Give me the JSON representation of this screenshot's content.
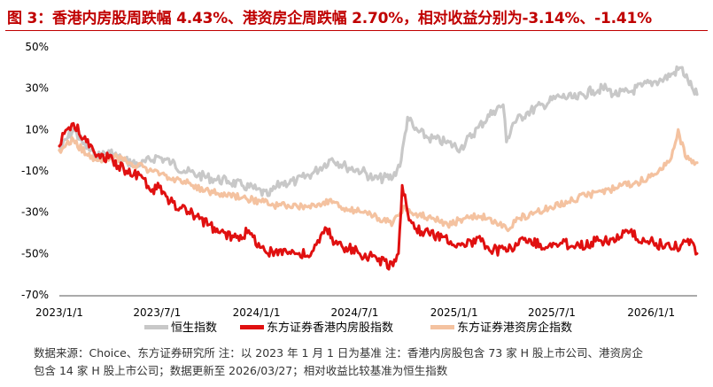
{
  "title": "图 3：香港内房股周跌幅 4.43%、港资房企周跌幅 2.70%，相对收益分别为-3.14%、-1.41%",
  "notes": [
    "数据来源：Choice、东方证券研究所 注：以 2023 年 1 月 1 日为基准      注：香港内房股包含 73 家 H 股上市公司、港资房企",
    "包含 14 家 H 股上市公司；数据更新至 2026/03/27；相对收益比较基准为恒生指数"
  ],
  "chart_data": {
    "type": "line",
    "title": "",
    "xlabel": "",
    "ylabel": "",
    "ylim": [
      -70,
      50
    ],
    "yticks": [
      50,
      30,
      10,
      -10,
      -30,
      -50,
      -70
    ],
    "ytick_labels": [
      "50%",
      "30%",
      "10%",
      "-10%",
      "-30%",
      "-50%",
      "-70%"
    ],
    "xlim": [
      "2023-01-01",
      "2026-03-27"
    ],
    "xticks": [
      "2023-01-01",
      "2023-07-01",
      "2024-01-01",
      "2024-07-01",
      "2025-01-01",
      "2025-07-01",
      "2026-01-01"
    ],
    "xtick_labels": [
      "2023/1/1",
      "2023/7/1",
      "2024/1/1",
      "2024/7/1",
      "2025/1/1",
      "2025/7/1",
      "2026/1/1"
    ],
    "grid": false,
    "legend_position": "bottom",
    "series": [
      {
        "name": "恒生指数",
        "color": "#c8c8c8",
        "x": [
          "2023-01-01",
          "2023-01-27",
          "2023-02-15",
          "2023-03-10",
          "2023-04-05",
          "2023-05-01",
          "2023-06-01",
          "2023-07-01",
          "2023-07-28",
          "2023-08-20",
          "2023-09-15",
          "2023-10-15",
          "2023-11-10",
          "2023-12-05",
          "2024-01-01",
          "2024-01-22",
          "2024-02-15",
          "2024-03-15",
          "2024-04-15",
          "2024-05-20",
          "2024-06-15",
          "2024-07-15",
          "2024-08-05",
          "2024-09-10",
          "2024-09-25",
          "2024-10-07",
          "2024-10-20",
          "2024-11-15",
          "2024-12-15",
          "2025-01-13",
          "2025-02-15",
          "2025-03-15",
          "2025-04-02",
          "2025-04-08",
          "2025-04-20",
          "2025-05-15",
          "2025-06-15",
          "2025-07-15",
          "2025-08-15",
          "2025-09-15",
          "2025-10-10",
          "2025-10-25",
          "2025-11-20",
          "2025-12-15",
          "2026-01-05",
          "2026-01-20",
          "2026-02-10",
          "2026-02-25",
          "2026-03-10",
          "2026-03-20",
          "2026-03-27"
        ],
        "values": [
          0,
          10,
          3,
          -3,
          -1,
          -5,
          -7,
          -3,
          -6,
          -10,
          -12,
          -14,
          -15,
          -17,
          -19,
          -22,
          -16,
          -15,
          -11,
          -4,
          -8,
          -10,
          -14,
          -13,
          -5,
          16,
          10,
          6,
          4,
          1,
          11,
          19,
          22,
          4,
          13,
          18,
          22,
          26,
          25,
          29,
          30,
          27,
          28,
          31,
          33,
          34,
          37,
          40,
          34,
          29,
          27
        ]
      },
      {
        "name": "东方证券香港内房股指数",
        "color": "#e01010",
        "x": [
          "2023-01-01",
          "2023-01-10",
          "2023-01-27",
          "2023-02-20",
          "2023-03-15",
          "2023-04-10",
          "2023-05-05",
          "2023-06-01",
          "2023-06-20",
          "2023-07-05",
          "2023-07-25",
          "2023-08-15",
          "2023-09-10",
          "2023-10-05",
          "2023-10-25",
          "2023-11-20",
          "2023-12-15",
          "2024-01-05",
          "2024-01-22",
          "2024-02-15",
          "2024-03-15",
          "2024-04-10",
          "2024-05-10",
          "2024-05-25",
          "2024-06-15",
          "2024-07-10",
          "2024-08-10",
          "2024-09-10",
          "2024-09-20",
          "2024-09-27",
          "2024-10-07",
          "2024-10-20",
          "2024-11-15",
          "2024-12-10",
          "2025-01-13",
          "2025-02-20",
          "2025-03-15",
          "2025-04-08",
          "2025-04-25",
          "2025-05-20",
          "2025-06-20",
          "2025-07-20",
          "2025-08-20",
          "2025-09-20",
          "2025-10-20",
          "2025-11-20",
          "2025-12-20",
          "2026-01-10",
          "2026-02-05",
          "2026-02-25",
          "2026-03-10",
          "2026-03-20",
          "2026-03-27"
        ],
        "values": [
          2,
          8,
          13,
          4,
          -2,
          -5,
          -10,
          -12,
          -20,
          -18,
          -25,
          -28,
          -32,
          -36,
          -40,
          -42,
          -40,
          -45,
          -50,
          -48,
          -50,
          -51,
          -38,
          -45,
          -47,
          -50,
          -52,
          -56,
          -50,
          -17,
          -30,
          -38,
          -40,
          -42,
          -46,
          -44,
          -48,
          -49,
          -45,
          -43,
          -47,
          -45,
          -46,
          -44,
          -43,
          -40,
          -44,
          -45,
          -47,
          -46,
          -43,
          -45,
          -50
        ]
      },
      {
        "name": "东方证券港资房企指数",
        "color": "#f4c2a0",
        "x": [
          "2023-01-01",
          "2023-01-27",
          "2023-02-20",
          "2023-03-15",
          "2023-04-10",
          "2023-05-10",
          "2023-06-05",
          "2023-07-05",
          "2023-08-05",
          "2023-09-05",
          "2023-10-05",
          "2023-11-05",
          "2023-12-05",
          "2024-01-10",
          "2024-02-10",
          "2024-03-10",
          "2024-04-10",
          "2024-05-15",
          "2024-06-15",
          "2024-07-15",
          "2024-08-15",
          "2024-09-10",
          "2024-10-02",
          "2024-10-20",
          "2024-11-20",
          "2024-12-20",
          "2025-01-20",
          "2025-02-20",
          "2025-03-20",
          "2025-04-08",
          "2025-04-30",
          "2025-06-01",
          "2025-07-01",
          "2025-08-01",
          "2025-09-01",
          "2025-10-01",
          "2025-11-01",
          "2025-12-01",
          "2025-12-25",
          "2026-01-15",
          "2026-02-05",
          "2026-02-20",
          "2026-03-05",
          "2026-03-20",
          "2026-03-27"
        ],
        "values": [
          0,
          5,
          -2,
          -5,
          -3,
          -6,
          -8,
          -12,
          -14,
          -17,
          -20,
          -22,
          -23,
          -25,
          -27,
          -26,
          -28,
          -24,
          -28,
          -30,
          -33,
          -35,
          -27,
          -31,
          -33,
          -36,
          -33,
          -32,
          -35,
          -38,
          -33,
          -30,
          -28,
          -25,
          -22,
          -20,
          -18,
          -16,
          -14,
          -10,
          -5,
          10,
          -3,
          -5,
          -6
        ]
      }
    ]
  }
}
